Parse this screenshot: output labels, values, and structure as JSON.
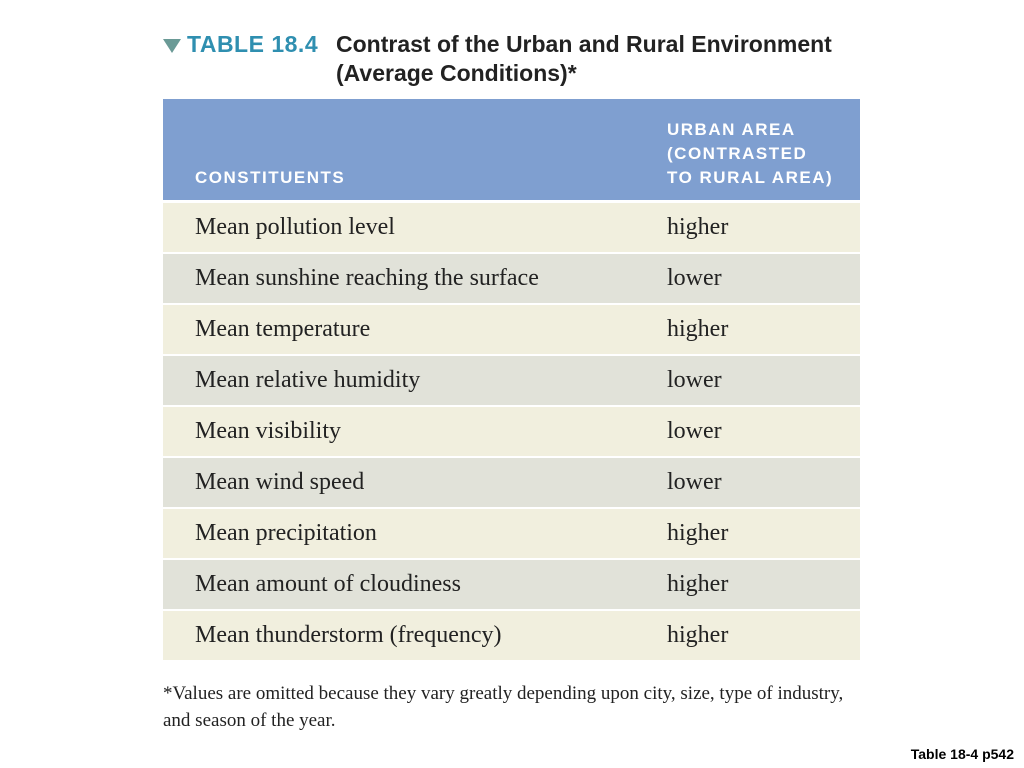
{
  "table": {
    "label": "TABLE 18.4",
    "title": "Contrast of the Urban and Rural Environment\n(Average Conditions)*",
    "header": {
      "constituents": "CONSTITUENTS",
      "urban_area": "URBAN AREA\n(CONTRASTED\nTO RURAL AREA)"
    },
    "rows": [
      {
        "constituent": "Mean pollution level",
        "value": "higher"
      },
      {
        "constituent": "Mean sunshine reaching the surface",
        "value": "lower"
      },
      {
        "constituent": "Mean temperature",
        "value": "higher"
      },
      {
        "constituent": "Mean relative humidity",
        "value": "lower"
      },
      {
        "constituent": "Mean visibility",
        "value": "lower"
      },
      {
        "constituent": "Mean wind speed",
        "value": "lower"
      },
      {
        "constituent": "Mean precipitation",
        "value": "higher"
      },
      {
        "constituent": "Mean amount of cloudiness",
        "value": "higher"
      },
      {
        "constituent": "Mean thunderstorm (frequency)",
        "value": "higher"
      }
    ],
    "footnote": "*Values are omitted because they vary greatly depending upon city, size, type of industry, and season of the year."
  },
  "caption": "Table 18-4 p542",
  "colors": {
    "label": "#2f8fb0",
    "header_bg": "#7f9fd0",
    "row_odd": "#f1efde",
    "row_even": "#e1e2d9"
  },
  "icons": {
    "marker": "triangle-down-icon"
  }
}
